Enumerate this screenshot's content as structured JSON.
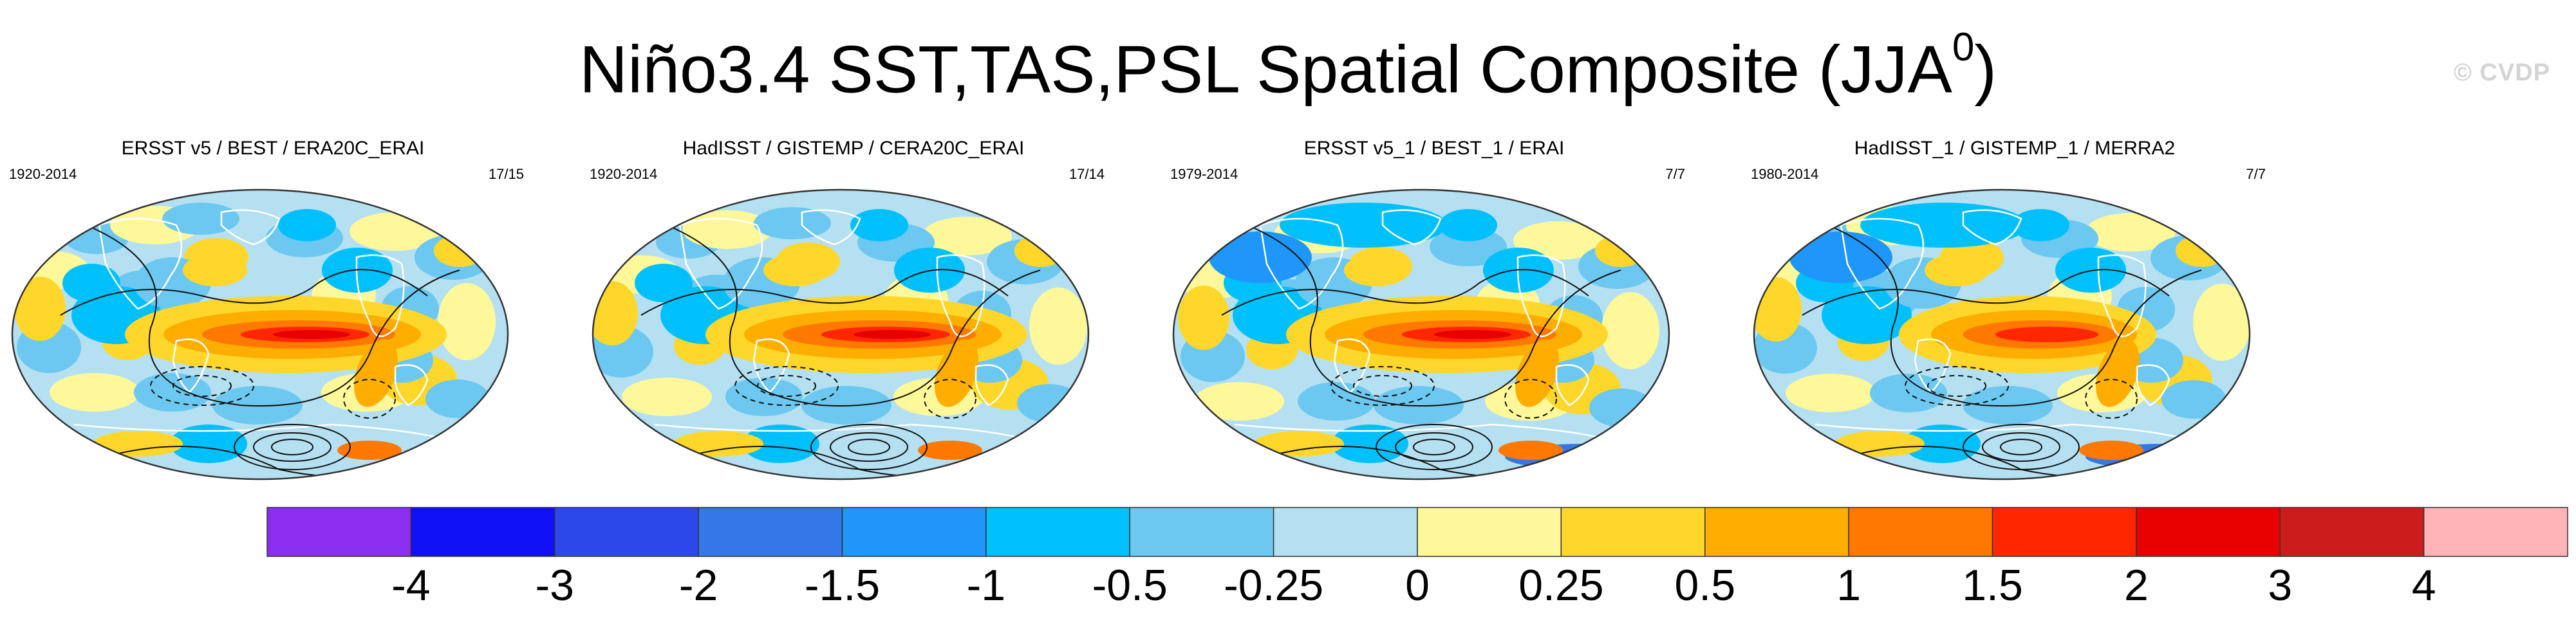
{
  "title": {
    "text": "Niño3.4 SST,TAS,PSL Spatial Composite (JJA",
    "superscript": "0",
    "close": ")"
  },
  "watermark": "© CVDP",
  "chart_data": {
    "type": "heatmap",
    "variables": [
      "SST",
      "TAS",
      "PSL"
    ],
    "index": "Niño3.4",
    "season": "JJA0",
    "panels": [
      {
        "title": "ERSST v5 / BEST / ERA20C_ERAI",
        "period": "1920-2014",
        "count": "17/15",
        "variant": 0
      },
      {
        "title": "HadISST / GISTEMP / CERA20C_ERAI",
        "period": "1920-2014",
        "count": "17/14",
        "variant": 1
      },
      {
        "title": "ERSST v5_1 / BEST_1 / ERAI",
        "period": "1979-2014",
        "count": "7/7",
        "variant": 2
      },
      {
        "title": "HadISST_1 / GISTEMP_1 / MERRA2",
        "period": "1980-2014",
        "count": "7/7",
        "variant": 3
      }
    ],
    "colorbar": {
      "levels": [
        "-4",
        "-3",
        "-2",
        "-1.5",
        "-1",
        "-0.5",
        "-0.25",
        "0",
        "0.25",
        "0.5",
        "1",
        "1.5",
        "2",
        "3",
        "4"
      ],
      "colors": [
        "#8b2ef0",
        "#1010f6",
        "#2c48ea",
        "#3378e6",
        "#1e96fa",
        "#00c0fc",
        "#6cc8f0",
        "#b4e0f2",
        "#fff89a",
        "#ffd72a",
        "#ffad00",
        "#ff7800",
        "#ff2600",
        "#e80000",
        "#cc1c1c",
        "#ffb4b8"
      ]
    }
  }
}
